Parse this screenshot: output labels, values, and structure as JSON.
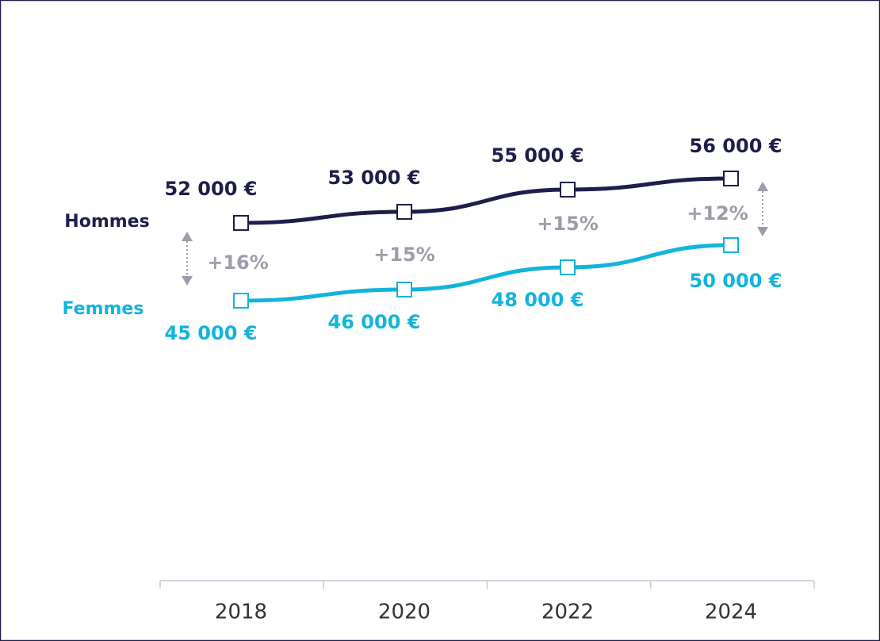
{
  "chart_data": {
    "type": "line",
    "categories": [
      "2018",
      "2020",
      "2022",
      "2024"
    ],
    "series": [
      {
        "name": "Hommes",
        "color": "#1e1e4c",
        "values": [
          52000,
          53000,
          55000,
          56000
        ],
        "value_labels": [
          "52 000 €",
          "53 000 €",
          "55 000 €",
          "56 000 €"
        ]
      },
      {
        "name": "Femmes",
        "color": "#12b4dc",
        "values": [
          45000,
          46000,
          48000,
          50000
        ],
        "value_labels": [
          "45 000 €",
          "46 000 €",
          "48 000 €",
          "50 000 €"
        ]
      }
    ],
    "annotations": [
      "+16%",
      "+15%",
      "+15%",
      "+12%"
    ]
  }
}
